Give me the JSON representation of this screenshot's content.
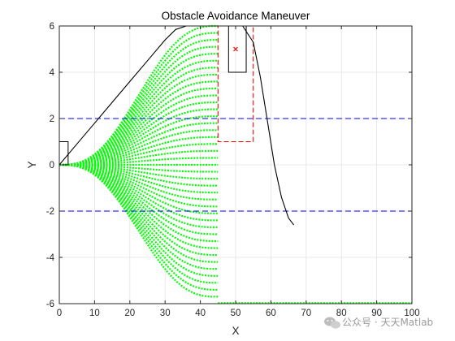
{
  "chart_data": {
    "type": "line",
    "title": "Obstacle Avoidance Maneuver",
    "xlabel": "X",
    "ylabel": "Y",
    "xlim": [
      0,
      100
    ],
    "ylim": [
      -6,
      6
    ],
    "xticks": [
      0,
      10,
      20,
      30,
      40,
      50,
      60,
      70,
      80,
      90,
      100
    ],
    "yticks": [
      -6,
      -4,
      -2,
      0,
      2,
      4,
      6
    ],
    "grid": true,
    "lane_boundaries": {
      "y": [
        2,
        -2
      ],
      "color": "#0000ff",
      "style": "dashed"
    },
    "obstacle": {
      "x_range": [
        48,
        53
      ],
      "y_range": [
        4,
        6
      ],
      "center": [
        50,
        5
      ],
      "safety_zone": {
        "x_range": [
          45,
          55
        ],
        "y_range": [
          1,
          6
        ],
        "color": "#ff0000",
        "style": "dashed"
      }
    },
    "ego_vehicle_box": {
      "x_range": [
        0,
        2.5
      ],
      "y_range": [
        0,
        1
      ]
    },
    "reference_path": {
      "x": [
        0,
        5,
        10,
        15,
        20,
        25,
        30,
        33,
        36,
        40,
        45,
        52,
        55,
        57,
        59,
        61,
        63,
        65,
        66.5
      ],
      "y": [
        0,
        0.9,
        1.8,
        2.7,
        3.6,
        4.5,
        5.4,
        5.85,
        6.0,
        6.0,
        6.0,
        6.0,
        5.3,
        3.8,
        1.9,
        0.0,
        -1.4,
        -2.3,
        -2.6
      ],
      "color": "#000000"
    },
    "candidate_paths": {
      "color": "#00ff00",
      "style": "dotted",
      "terminal_x": 45,
      "terminal_y": [
        6,
        5.7,
        5.4,
        5.1,
        4.8,
        4.5,
        4.2,
        3.9,
        3.6,
        3.3,
        3.0,
        2.7,
        2.4,
        2.1,
        1.8,
        1.5,
        1.2,
        0.9,
        0.6,
        0.3,
        0.0,
        -0.3,
        -0.6,
        -0.9,
        -1.2,
        -1.5,
        -1.8,
        -2.1,
        -2.4,
        -2.7,
        -3.0,
        -3.3,
        -3.6,
        -3.9,
        -4.2,
        -4.5,
        -4.8,
        -5.1,
        -5.4,
        -5.7
      ],
      "terminal_line": {
        "x_range": [
          45,
          100
        ],
        "y": -6
      }
    }
  },
  "watermark": {
    "text": "公众号 · 天天Matlab",
    "icon": "wechat-icon"
  }
}
